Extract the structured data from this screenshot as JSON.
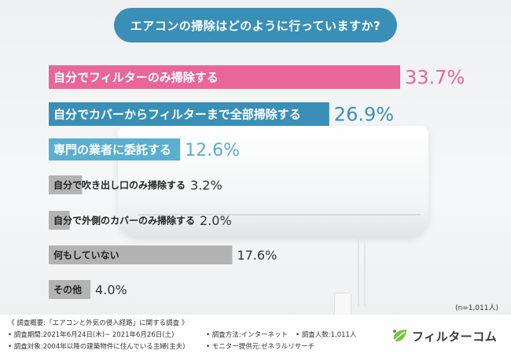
{
  "title": "エアコンの掃除はどのように行っていますか?",
  "chart_data": {
    "type": "bar",
    "orientation": "horizontal",
    "categories": [
      "自分でフィルターのみ掃除する",
      "自分でカバーからフィルターまで全部掃除する",
      "専門の業者に委託する",
      "自分で吹き出し口のみ掃除する",
      "自分で外側のカバーのみ掃除する",
      "何もしていない",
      "その他"
    ],
    "values": [
      33.7,
      26.9,
      12.6,
      3.2,
      2.0,
      17.6,
      4.0
    ],
    "value_labels": [
      "33.7%",
      "26.9%",
      "12.6%",
      "3.2%",
      "2.0%",
      "17.6%",
      "4.0%"
    ],
    "unit": "%",
    "xlim": [
      0,
      33.7
    ],
    "colors": [
      "#e8669a",
      "#3a8fb7",
      "#5aaed0",
      "#b3b3b3",
      "#b3b3b3",
      "#b3b3b3",
      "#b3b3b3"
    ],
    "grid": false,
    "legend": "none"
  },
  "sample_note": "(n=1,011人)",
  "footer": {
    "survey_title": "《 調査概要:「エアコンと外気の侵入経路」に関する調査 》",
    "period": "• 調査期間:2021年6月24日(木)~ 2021年6月26日(土)",
    "method": "• 調査方法:インターネット",
    "count": "• 調査人数:1,011人",
    "target": "• 調査対象:2004年以降の建築物件に住んでいる主婦(主夫)",
    "provider": "• モニター提供元:ゼネラルリサーチ"
  },
  "logo": {
    "name": "フィルターコム",
    "icon": "leaf-filter-icon",
    "color": "#5aa03c"
  }
}
